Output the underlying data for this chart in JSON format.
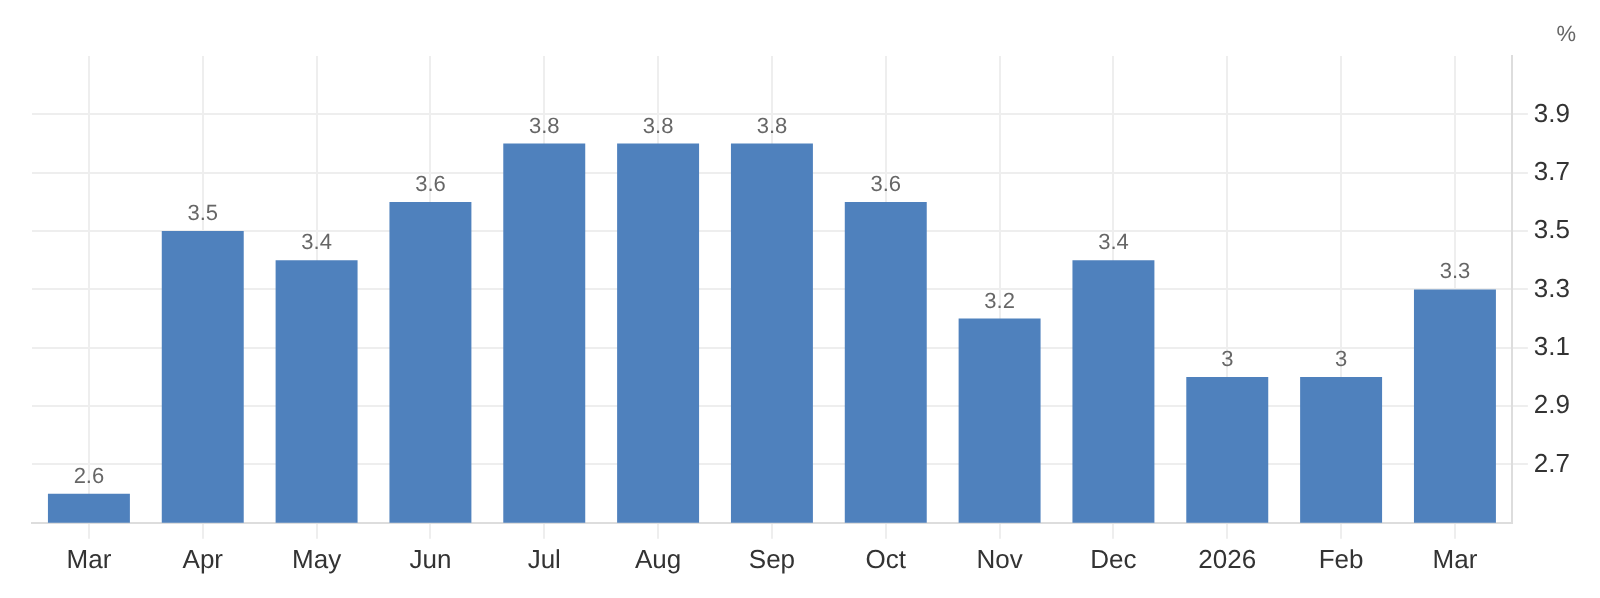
{
  "chart_data": {
    "type": "bar",
    "ylabel": "%",
    "categories": [
      "Mar",
      "Apr",
      "May",
      "Jun",
      "Jul",
      "Aug",
      "Sep",
      "Oct",
      "Nov",
      "Dec",
      "2026",
      "Feb",
      "Mar"
    ],
    "values": [
      2.6,
      3.5,
      3.4,
      3.6,
      3.8,
      3.8,
      3.8,
      3.6,
      3.2,
      3.4,
      3,
      3,
      3.3
    ],
    "color": "#4f81bd",
    "ylim": [
      2.5,
      4.1
    ],
    "yticks": [
      2.7,
      2.9,
      3.1,
      3.3,
      3.5,
      3.7,
      3.9
    ],
    "grid": true,
    "data_labels": true,
    "legend": false
  }
}
